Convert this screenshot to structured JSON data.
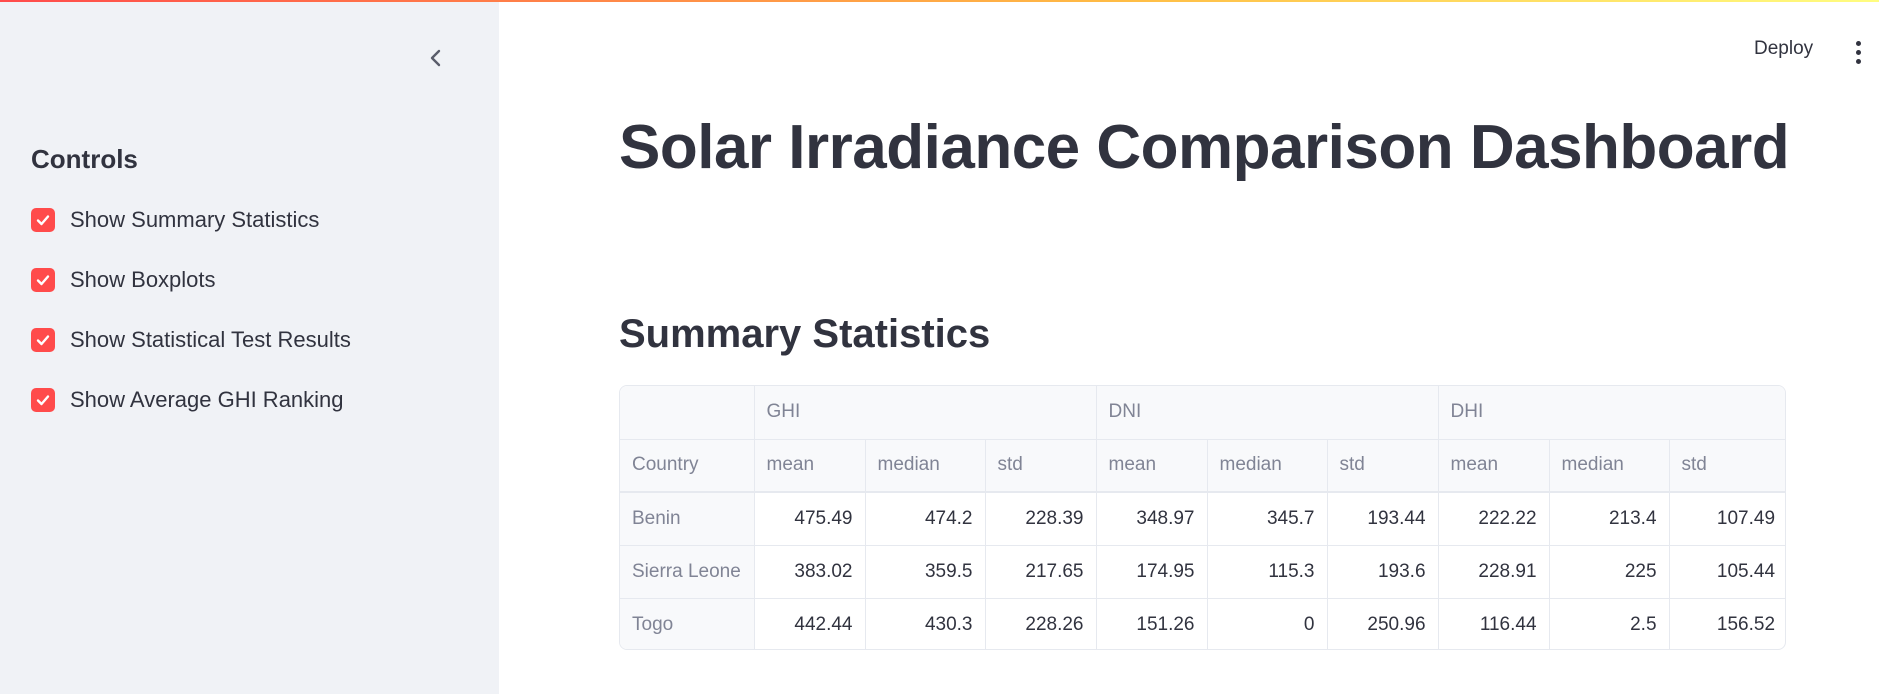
{
  "sidebar": {
    "heading": "Controls",
    "checkboxes": [
      {
        "label": "Show Summary Statistics",
        "checked": true
      },
      {
        "label": "Show Boxplots",
        "checked": true
      },
      {
        "label": "Show Statistical Test Results",
        "checked": true
      },
      {
        "label": "Show Average GHI Ranking",
        "checked": true
      }
    ],
    "collapse_icon": "chevron-left-icon"
  },
  "header": {
    "deploy_label": "Deploy",
    "menu_icon": "kebab-menu-icon"
  },
  "main": {
    "title": "Solar Irradiance Comparison Dashboard",
    "section_title": "Summary Statistics",
    "table": {
      "groups": [
        "GHI",
        "DNI",
        "DHI"
      ],
      "index_header": "Country",
      "sub_headers": [
        "mean",
        "median",
        "std",
        "mean",
        "median",
        "std",
        "mean",
        "median",
        "std"
      ],
      "rows": [
        {
          "country": "Benin",
          "values": [
            "475.49",
            "474.2",
            "228.39",
            "348.97",
            "345.7",
            "193.44",
            "222.22",
            "213.4",
            "107.49"
          ]
        },
        {
          "country": "Sierra Leone",
          "values": [
            "383.02",
            "359.5",
            "217.65",
            "174.95",
            "115.3",
            "193.6",
            "228.91",
            "225",
            "105.44"
          ]
        },
        {
          "country": "Togo",
          "values": [
            "442.44",
            "430.3",
            "228.26",
            "151.26",
            "0",
            "250.96",
            "116.44",
            "2.5",
            "156.52"
          ]
        }
      ]
    }
  },
  "colors": {
    "accent": "#ff4b4b",
    "sidebar_bg": "#f0f2f6",
    "text": "#31333f",
    "muted_text": "#808495"
  }
}
